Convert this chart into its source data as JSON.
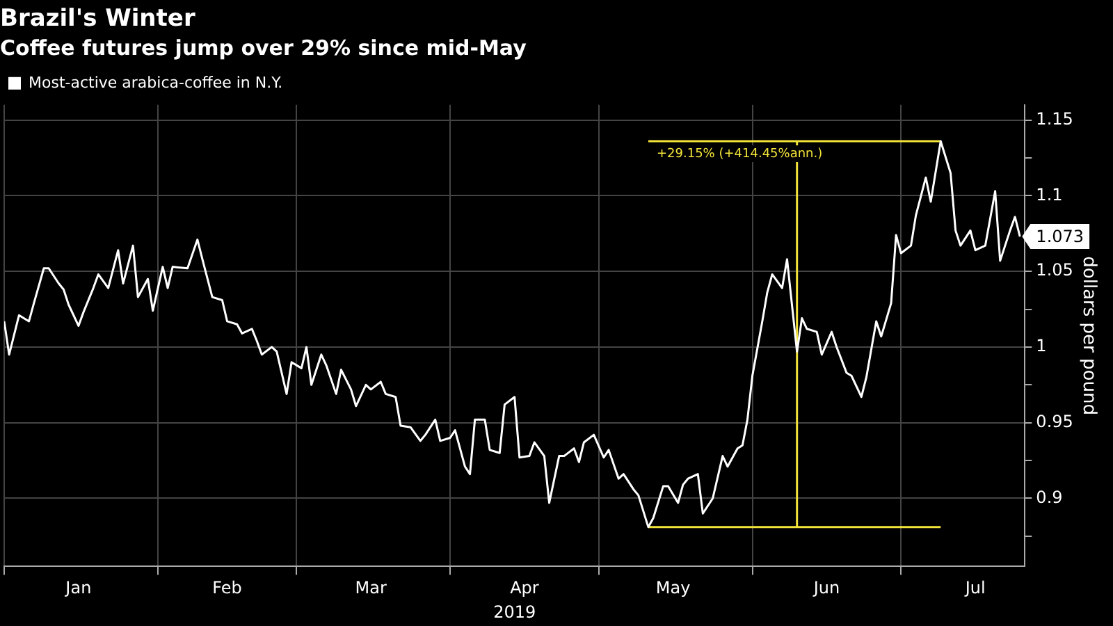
{
  "chart_data": {
    "type": "line",
    "title": "Brazil's Winter",
    "subtitle": "Coffee futures jump over 29% since mid-May",
    "xlabel": "2019",
    "ylabel": "dollars per pound",
    "xlim": [
      "2019-01-01",
      "2019-07-26"
    ],
    "xticks": [
      {
        "value": "2019-01-01",
        "label": null
      },
      {
        "value": "2019-01-16",
        "label": "Jan"
      },
      {
        "value": "2019-02-01",
        "label": null
      },
      {
        "value": "2019-02-15",
        "label": "Feb"
      },
      {
        "value": "2019-03-01",
        "label": null
      },
      {
        "value": "2019-03-16",
        "label": "Mar"
      },
      {
        "value": "2019-04-01",
        "label": null
      },
      {
        "value": "2019-04-16",
        "label": "Apr"
      },
      {
        "value": "2019-05-01",
        "label": null
      },
      {
        "value": "2019-05-16",
        "label": "May"
      },
      {
        "value": "2019-06-01",
        "label": null
      },
      {
        "value": "2019-06-16",
        "label": "Jun"
      },
      {
        "value": "2019-07-01",
        "label": null
      },
      {
        "value": "2019-07-16",
        "label": "Jul"
      }
    ],
    "ylim": [
      0.855,
      1.16
    ],
    "yticks": [
      {
        "value": 0.875,
        "label": null
      },
      0.9,
      {
        "value": 0.925,
        "label": null
      },
      0.95,
      {
        "value": 0.975,
        "label": null
      },
      1,
      {
        "value": 1.025,
        "label": null
      },
      1.05,
      {
        "value": 1.075,
        "label": null
      },
      1.1,
      {
        "value": 1.125,
        "label": null
      },
      1.15
    ],
    "grid": true,
    "legend": "top left",
    "marker": "none",
    "line_style": "solid",
    "series": [
      {
        "name": "Most-active arabica-coffee in N.Y.",
        "color": "#ffffff",
        "x": [
          "2019-01-01",
          "2019-01-02",
          "2019-01-04",
          "2019-01-06",
          "2019-01-07",
          "2019-01-09",
          "2019-01-10",
          "2019-01-12",
          "2019-01-13",
          "2019-01-14",
          "2019-01-16",
          "2019-01-17",
          "2019-01-19",
          "2019-01-20",
          "2019-01-22",
          "2019-01-24",
          "2019-01-25",
          "2019-01-27",
          "2019-01-28",
          "2019-01-30",
          "2019-01-31",
          "2019-02-02",
          "2019-02-03",
          "2019-02-04",
          "2019-02-07",
          "2019-02-09",
          "2019-02-10",
          "2019-02-12",
          "2019-02-14",
          "2019-02-15",
          "2019-02-17",
          "2019-02-18",
          "2019-02-20",
          "2019-02-21",
          "2019-02-22",
          "2019-02-24",
          "2019-02-25",
          "2019-02-27",
          "2019-02-28",
          "2019-03-02",
          "2019-03-03",
          "2019-03-04",
          "2019-03-06",
          "2019-03-07",
          "2019-03-09",
          "2019-03-10",
          "2019-03-12",
          "2019-03-13",
          "2019-03-15",
          "2019-03-16",
          "2019-03-18",
          "2019-03-19",
          "2019-03-21",
          "2019-03-22",
          "2019-03-24",
          "2019-03-26",
          "2019-03-27",
          "2019-03-29",
          "2019-03-30",
          "2019-04-01",
          "2019-04-02",
          "2019-04-04",
          "2019-04-05",
          "2019-04-06",
          "2019-04-08",
          "2019-04-09",
          "2019-04-11",
          "2019-04-12",
          "2019-04-14",
          "2019-04-15",
          "2019-04-17",
          "2019-04-18",
          "2019-04-20",
          "2019-04-21",
          "2019-04-23",
          "2019-04-24",
          "2019-04-26",
          "2019-04-27",
          "2019-04-28",
          "2019-04-30",
          "2019-05-02",
          "2019-05-03",
          "2019-05-05",
          "2019-05-06",
          "2019-05-08",
          "2019-05-09",
          "2019-05-11",
          "2019-05-12",
          "2019-05-14",
          "2019-05-15",
          "2019-05-17",
          "2019-05-18",
          "2019-05-19",
          "2019-05-21",
          "2019-05-22",
          "2019-05-24",
          "2019-05-26",
          "2019-05-27",
          "2019-05-29",
          "2019-05-30",
          "2019-05-31",
          "2019-06-01",
          "2019-06-03",
          "2019-06-04",
          "2019-06-05",
          "2019-06-07",
          "2019-06-08",
          "2019-06-10",
          "2019-06-11",
          "2019-06-12",
          "2019-06-14",
          "2019-06-15",
          "2019-06-17",
          "2019-06-18",
          "2019-06-20",
          "2019-06-21",
          "2019-06-23",
          "2019-06-24",
          "2019-06-26",
          "2019-06-27",
          "2019-06-29",
          "2019-06-30",
          "2019-07-01",
          "2019-07-03",
          "2019-07-04",
          "2019-07-06",
          "2019-07-07",
          "2019-07-09",
          "2019-07-11",
          "2019-07-12",
          "2019-07-13",
          "2019-07-15",
          "2019-07-16",
          "2019-07-18",
          "2019-07-20",
          "2019-07-21",
          "2019-07-23",
          "2019-07-24",
          "2019-07-25"
        ],
        "values": [
          1.017,
          0.995,
          1.021,
          1.017,
          1.029,
          1.052,
          1.052,
          1.042,
          1.038,
          1.028,
          1.014,
          1.023,
          1.039,
          1.048,
          1.039,
          1.064,
          1.042,
          1.067,
          1.033,
          1.045,
          1.024,
          1.053,
          1.039,
          1.053,
          1.052,
          1.071,
          1.058,
          1.033,
          1.031,
          1.017,
          1.015,
          1.009,
          1.012,
          1.004,
          0.995,
          1.0,
          0.997,
          0.969,
          0.99,
          0.986,
          1.0,
          0.975,
          0.995,
          0.988,
          0.969,
          0.985,
          0.972,
          0.961,
          0.975,
          0.972,
          0.977,
          0.969,
          0.967,
          0.948,
          0.947,
          0.938,
          0.942,
          0.952,
          0.938,
          0.94,
          0.945,
          0.921,
          0.916,
          0.952,
          0.952,
          0.932,
          0.93,
          0.962,
          0.967,
          0.927,
          0.928,
          0.937,
          0.928,
          0.897,
          0.928,
          0.928,
          0.933,
          0.924,
          0.937,
          0.942,
          0.927,
          0.932,
          0.913,
          0.916,
          0.906,
          0.902,
          0.881,
          0.887,
          0.908,
          0.908,
          0.897,
          0.909,
          0.913,
          0.916,
          0.89,
          0.9,
          0.928,
          0.921,
          0.933,
          0.935,
          0.952,
          0.981,
          1.017,
          1.036,
          1.048,
          1.039,
          1.058,
          0.997,
          1.019,
          1.012,
          1.01,
          0.995,
          1.01,
          1.0,
          0.983,
          0.981,
          0.967,
          0.98,
          1.017,
          1.007,
          1.029,
          1.074,
          1.062,
          1.067,
          1.087,
          1.112,
          1.096,
          1.136,
          1.115,
          1.077,
          1.067,
          1.077,
          1.064,
          1.067,
          1.103,
          1.057,
          1.077,
          1.086,
          1.073
        ]
      },
      {
        "type": "line",
        "color": "#f2e33a",
        "x": [
          "2019-05-11",
          "2019-07-09"
        ],
        "values": [
          0.881,
          0.881
        ]
      },
      {
        "type": "line",
        "color": "#f2e33a",
        "x": [
          "2019-05-11",
          "2019-07-09"
        ],
        "values": [
          1.136,
          1.136
        ]
      },
      {
        "type": "line",
        "color": "#f2e33a",
        "x": [
          "2019-06-10",
          "2019-06-10"
        ],
        "values": [
          0.881,
          1.136
        ]
      }
    ],
    "annotations": [
      "+29.15% (+414.45%ann.)",
      {
        "text": "1.073",
        "x": "2019-07-25",
        "y": 1.073
      }
    ]
  }
}
